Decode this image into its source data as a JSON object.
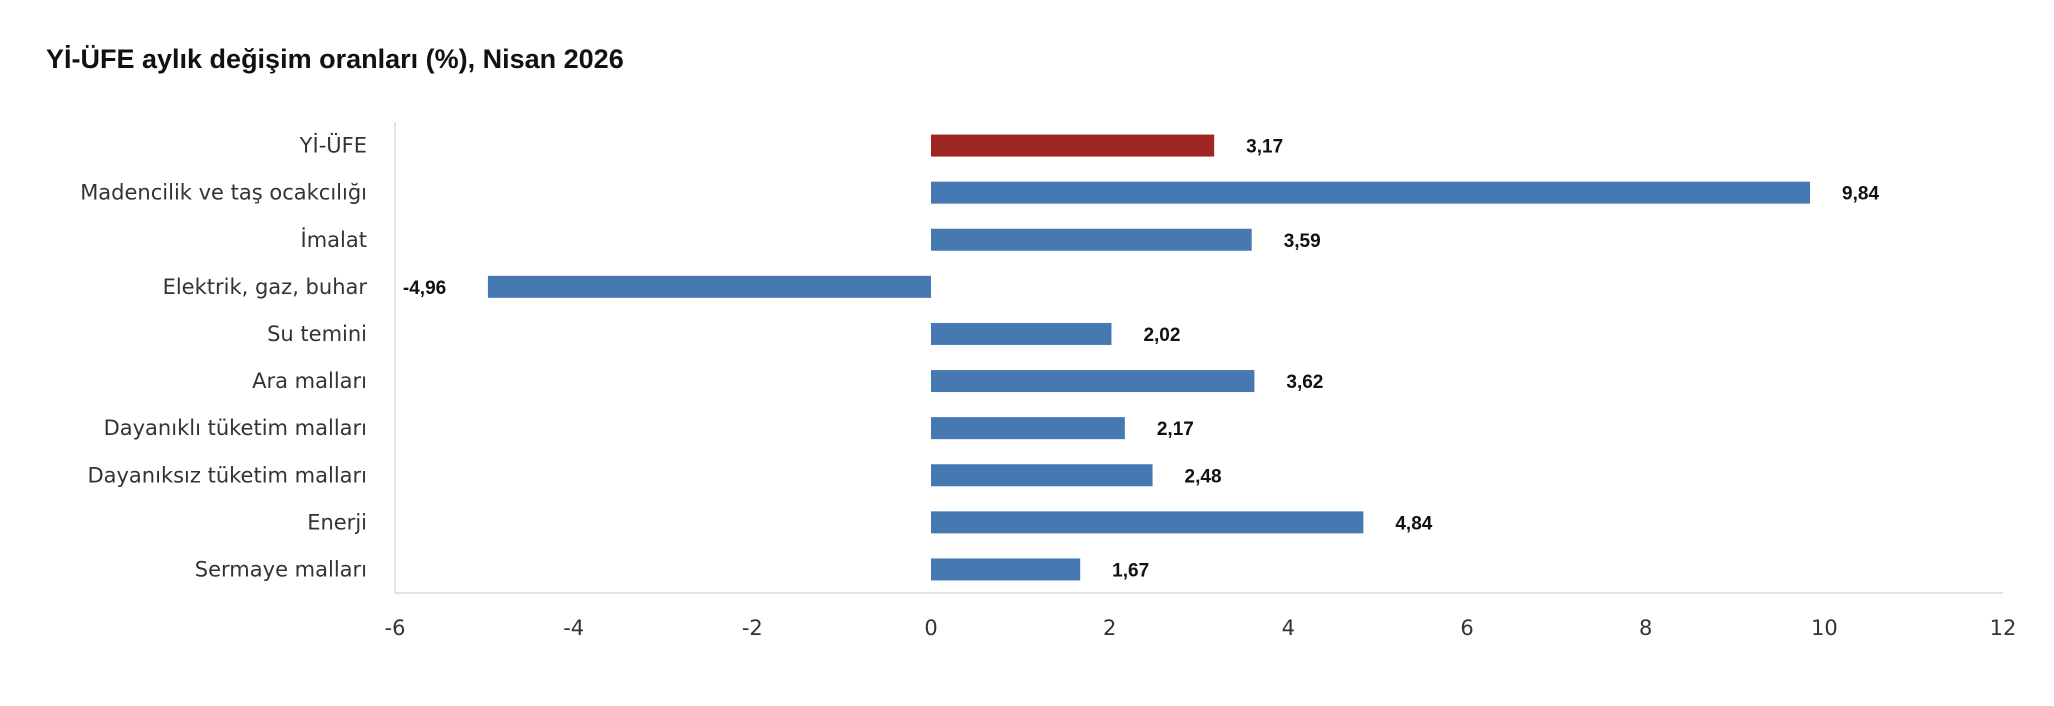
{
  "chart_data": {
    "type": "bar",
    "orientation": "horizontal",
    "title": "Yİ-ÜFE aylık değişim oranları (%), Nisan 2026",
    "categories": [
      "Yİ-ÜFE",
      "Madencilik ve taş ocakcılığı",
      "İmalat",
      "Elektrik, gaz, buhar",
      "Su temini",
      "Ara malları",
      "Dayanıklı tüketim malları",
      "Dayanıksız tüketim malları",
      "Enerji",
      "Sermaye malları"
    ],
    "values": [
      3.17,
      9.84,
      3.59,
      -4.96,
      2.02,
      3.62,
      2.17,
      2.48,
      4.84,
      1.67
    ],
    "value_labels": [
      "3,17",
      "9,84",
      "3,59",
      "-4,96",
      "2,02",
      "3,62",
      "2,17",
      "2,48",
      "4,84",
      "1,67"
    ],
    "xlim": [
      -6,
      12
    ],
    "xticks": [
      -6,
      -4,
      -2,
      0,
      2,
      4,
      6,
      8,
      10,
      12
    ],
    "xtick_labels": [
      "-6",
      "-4",
      "-2",
      "0",
      "2",
      "4",
      "6",
      "8",
      "10",
      "12"
    ],
    "xlabel": "",
    "ylabel": "",
    "grid": false,
    "legend": "none",
    "colors": {
      "highlight": "#9E2623",
      "bar": "#4679B1",
      "axis": "#D9D9D9"
    },
    "highlight_index": 0
  }
}
